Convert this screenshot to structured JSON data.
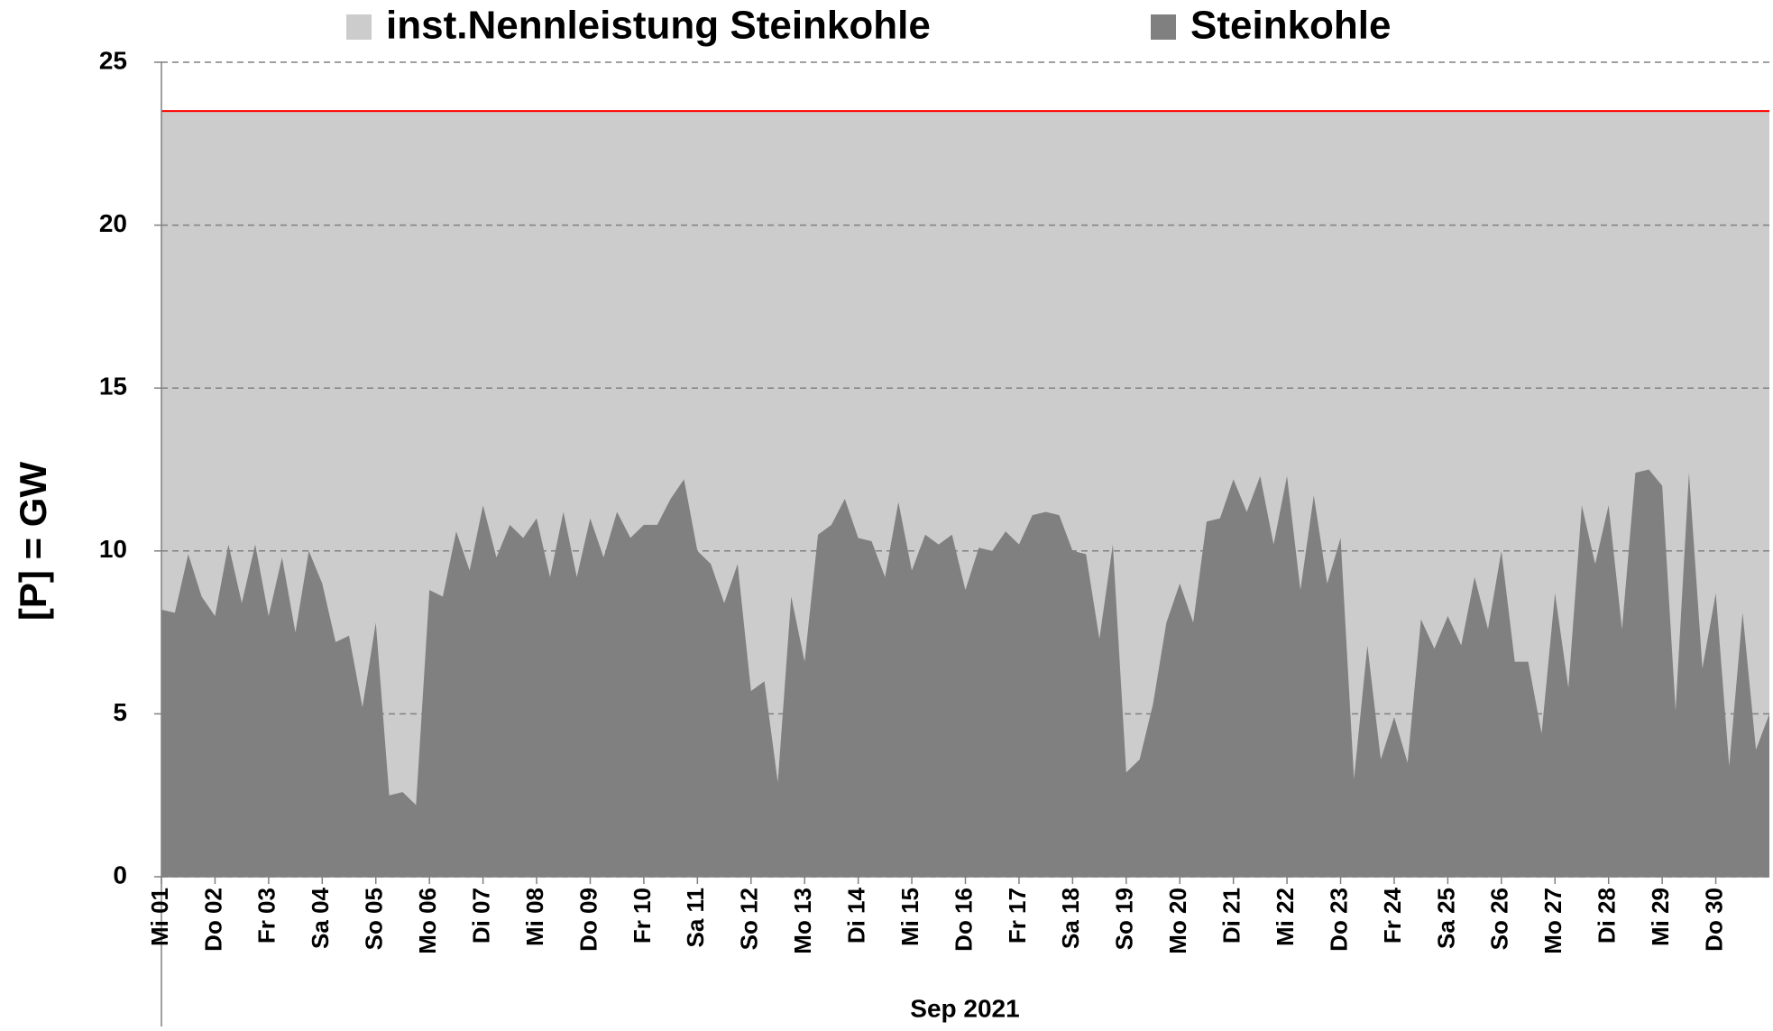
{
  "chart_data": {
    "type": "area",
    "ylabel": "[P]  =  GW",
    "xlabel": "Sep 2021",
    "xlim": [
      0,
      720
    ],
    "xticks": [
      {
        "value": 0,
        "label": "Mi 01"
      },
      {
        "value": 24,
        "label": "Do 02"
      },
      {
        "value": 48,
        "label": "Fr 03"
      },
      {
        "value": 72,
        "label": "Sa 04"
      },
      {
        "value": 96,
        "label": "So 05"
      },
      {
        "value": 120,
        "label": "Mo 06"
      },
      {
        "value": 144,
        "label": "Di 07"
      },
      {
        "value": 168,
        "label": "Mi 08"
      },
      {
        "value": 192,
        "label": "Do 09"
      },
      {
        "value": 216,
        "label": "Fr 10"
      },
      {
        "value": 240,
        "label": "Sa 11"
      },
      {
        "value": 264,
        "label": "So 12"
      },
      {
        "value": 288,
        "label": "Mo 13"
      },
      {
        "value": 312,
        "label": "Di 14"
      },
      {
        "value": 336,
        "label": "Mi 15"
      },
      {
        "value": 360,
        "label": "Do 16"
      },
      {
        "value": 384,
        "label": "Fr 17"
      },
      {
        "value": 408,
        "label": "Sa 18"
      },
      {
        "value": 432,
        "label": "So 19"
      },
      {
        "value": 456,
        "label": "Mo 20"
      },
      {
        "value": 480,
        "label": "Di 21"
      },
      {
        "value": 504,
        "label": "Mi 22"
      },
      {
        "value": 528,
        "label": "Do 23"
      },
      {
        "value": 552,
        "label": "Fr 24"
      },
      {
        "value": 576,
        "label": "Sa 25"
      },
      {
        "value": 600,
        "label": "So 26"
      },
      {
        "value": 624,
        "label": "Mo 27"
      },
      {
        "value": 648,
        "label": "Di 28"
      },
      {
        "value": 672,
        "label": "Mi 29"
      },
      {
        "value": 696,
        "label": "Do 30"
      }
    ],
    "ylim": [
      0,
      25
    ],
    "yticks": [
      0,
      5,
      10,
      15,
      20,
      25
    ],
    "grid": true,
    "series": [
      {
        "name": "inst.Nennleistung Steinkohle",
        "color": "#cccccc",
        "line_color": "#ff0000",
        "x": [
          0,
          720
        ],
        "values": [
          23.5,
          23.5
        ]
      },
      {
        "name": "Steinkohle",
        "color": "#808080",
        "x": [
          0,
          6,
          12,
          18,
          24,
          30,
          36,
          42,
          48,
          54,
          60,
          66,
          72,
          78,
          84,
          90,
          96,
          102,
          108,
          114,
          120,
          126,
          132,
          138,
          144,
          150,
          156,
          162,
          168,
          174,
          180,
          186,
          192,
          198,
          204,
          210,
          216,
          222,
          228,
          234,
          240,
          246,
          252,
          258,
          264,
          270,
          276,
          282,
          288,
          294,
          300,
          306,
          312,
          318,
          324,
          330,
          336,
          342,
          348,
          354,
          360,
          366,
          372,
          378,
          384,
          390,
          396,
          402,
          408,
          414,
          420,
          426,
          432,
          438,
          444,
          450,
          456,
          462,
          468,
          474,
          480,
          486,
          492,
          498,
          504,
          510,
          516,
          522,
          528,
          534,
          540,
          546,
          552,
          558,
          564,
          570,
          576,
          582,
          588,
          594,
          600,
          606,
          612,
          618,
          624,
          630,
          636,
          642,
          648,
          654,
          660,
          666,
          672,
          678,
          684,
          690,
          696,
          702,
          708,
          714,
          720
        ],
        "values": [
          8.2,
          8.1,
          9.9,
          8.6,
          8.0,
          10.2,
          8.4,
          10.2,
          8.0,
          9.8,
          7.5,
          10.0,
          9.0,
          7.2,
          7.4,
          5.2,
          7.8,
          2.5,
          2.6,
          2.2,
          8.8,
          8.6,
          10.6,
          9.4,
          11.4,
          9.8,
          10.8,
          10.4,
          11.0,
          9.2,
          11.2,
          9.2,
          11.0,
          9.8,
          11.2,
          10.4,
          10.8,
          10.8,
          11.6,
          12.2,
          10.0,
          9.6,
          8.4,
          9.6,
          5.7,
          6.0,
          2.9,
          8.6,
          6.6,
          10.5,
          10.8,
          11.6,
          10.4,
          10.3,
          9.2,
          11.5,
          9.4,
          10.5,
          10.2,
          10.5,
          8.8,
          10.1,
          10.0,
          10.6,
          10.2,
          11.1,
          11.2,
          11.1,
          10.0,
          9.9,
          7.3,
          10.2,
          3.2,
          3.6,
          5.3,
          7.8,
          9.0,
          7.8,
          10.9,
          11.0,
          12.2,
          11.2,
          12.3,
          10.2,
          12.3,
          8.8,
          11.7,
          9.0,
          10.4,
          3.0,
          7.1,
          3.6,
          4.9,
          3.5,
          7.9,
          7.0,
          8.0,
          7.1,
          9.2,
          7.6,
          10.0,
          6.6,
          6.6,
          4.4,
          8.7,
          5.8,
          11.4,
          9.6,
          11.4,
          7.6,
          12.4,
          12.5,
          12.0,
          5.1,
          12.4,
          6.4,
          8.7,
          3.4,
          8.1,
          3.9,
          5.0
        ]
      }
    ]
  }
}
